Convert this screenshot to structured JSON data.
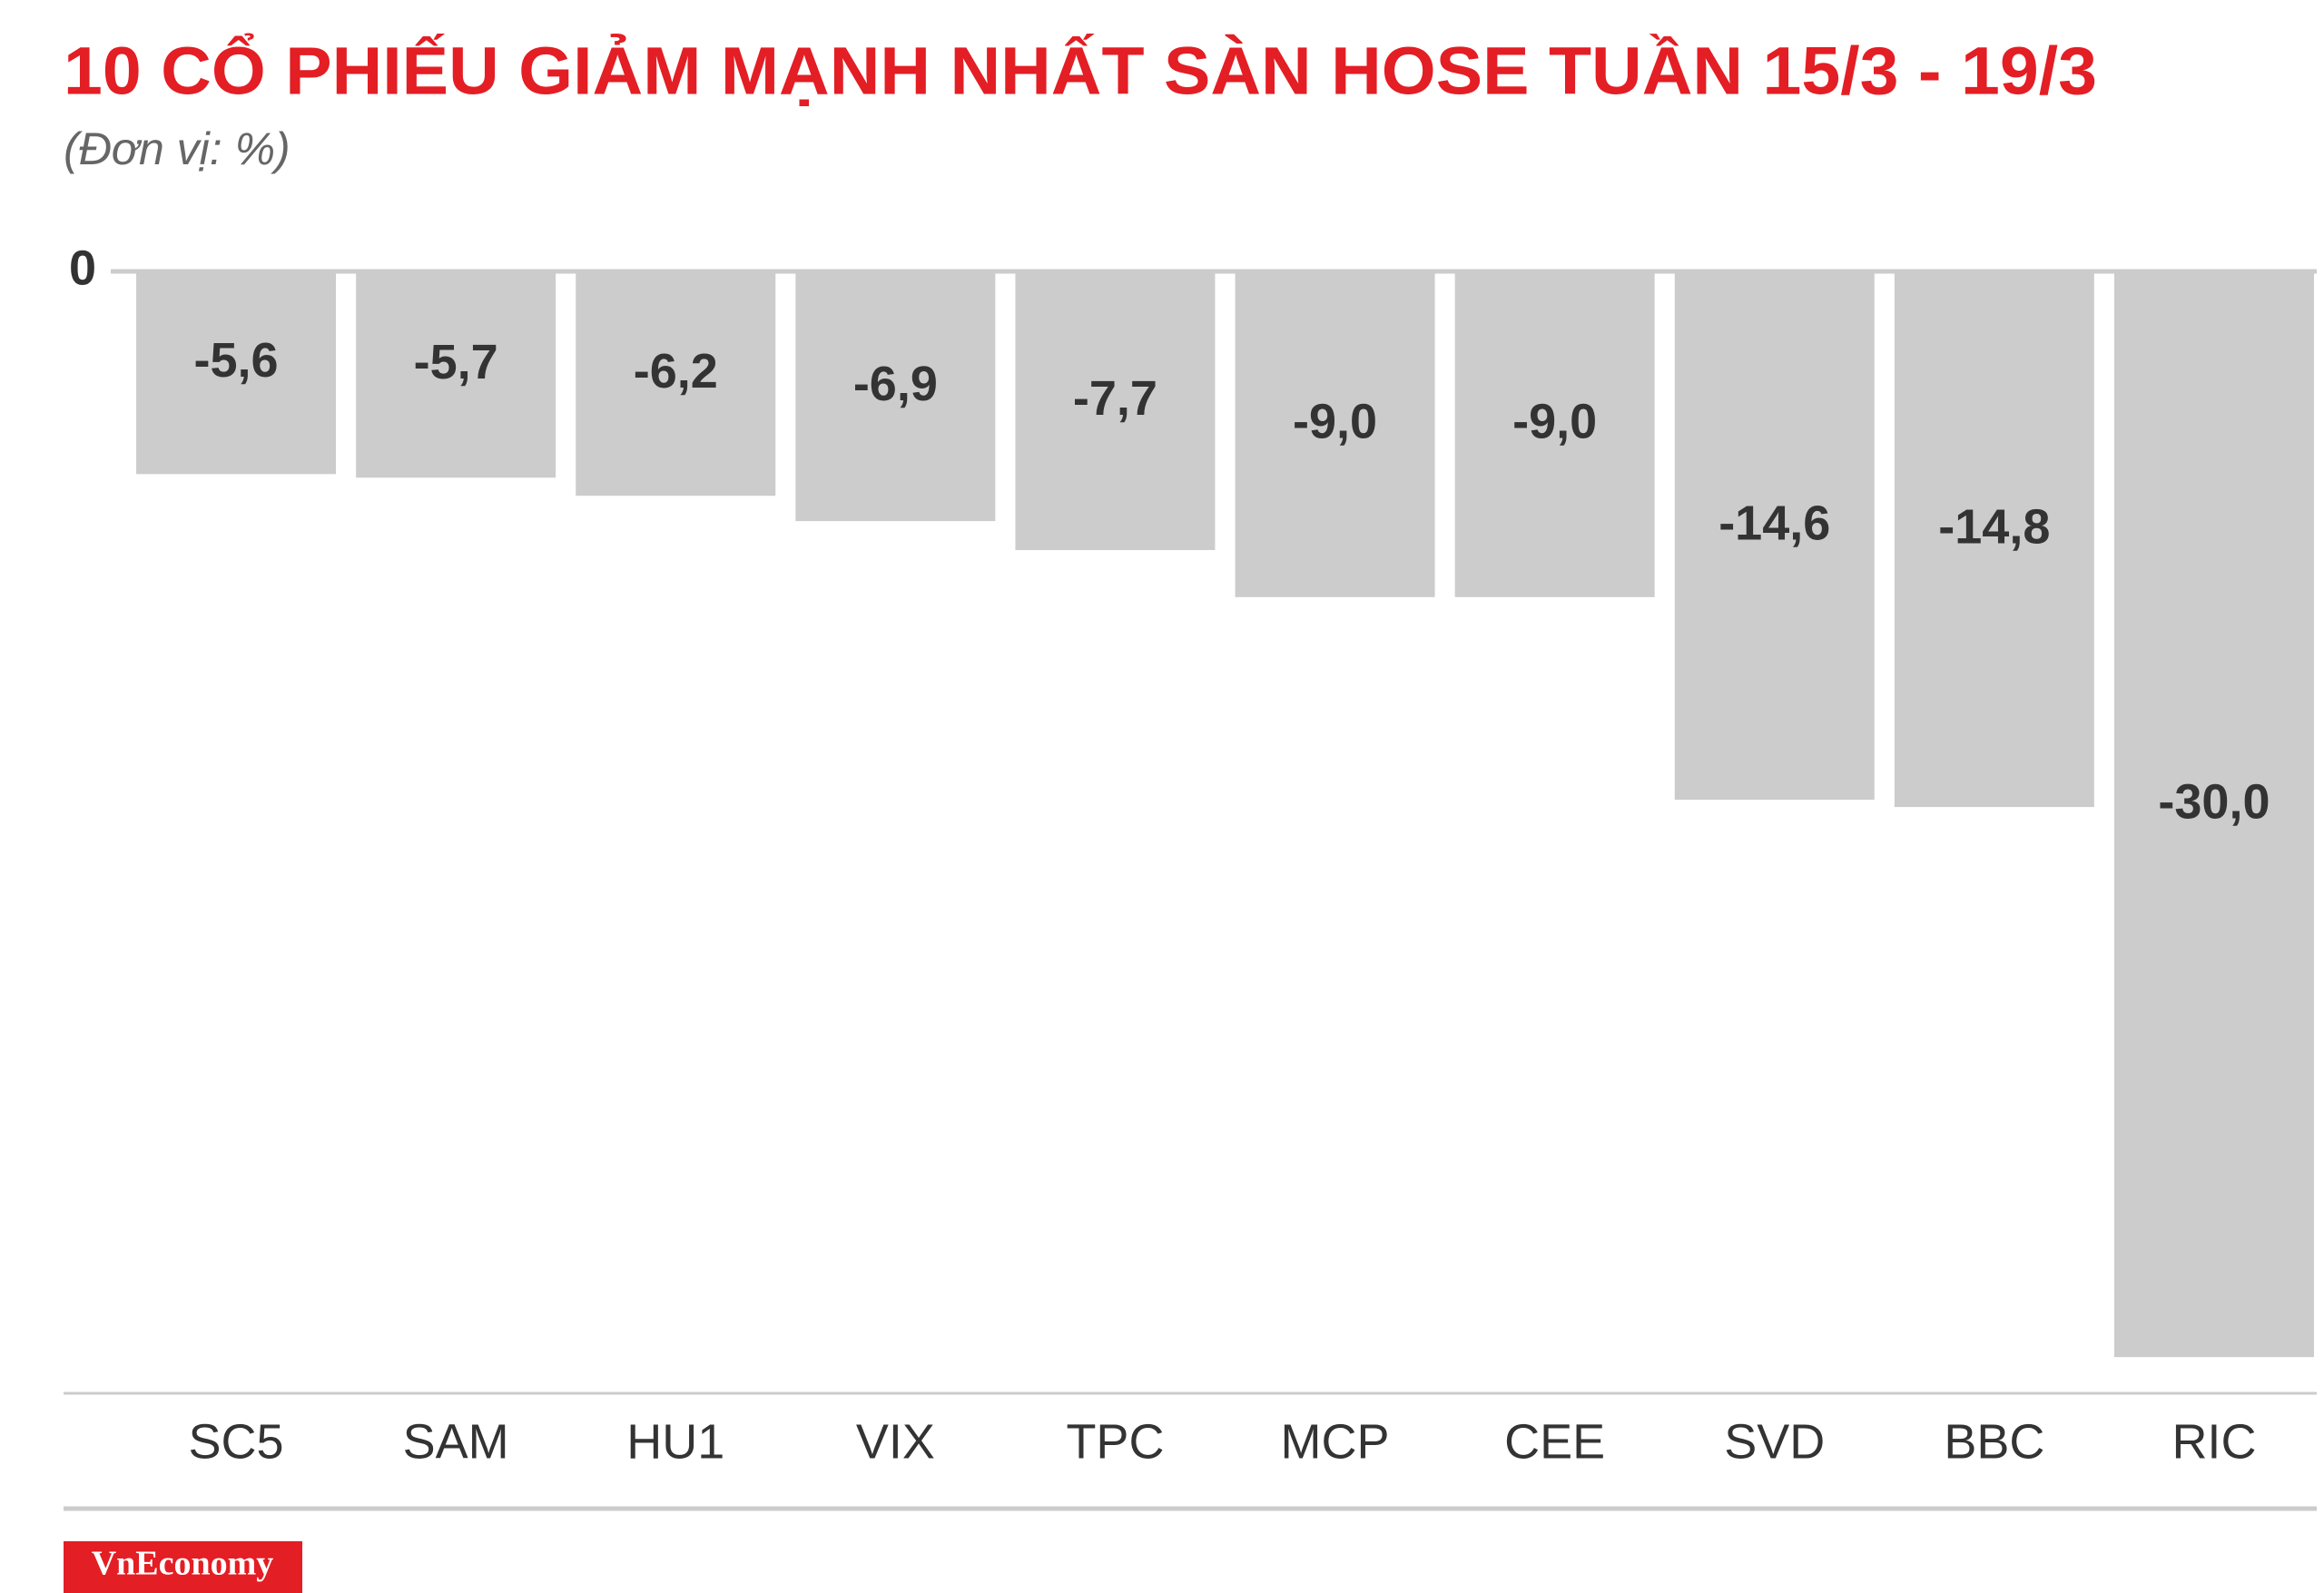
{
  "chart_data": {
    "type": "bar",
    "title": "10 CỔ PHIẾU GIẢM MẠNH NHẤT SÀN HOSE TUẦN 15/3 - 19/3",
    "subtitle": "(Đơn vị: %)",
    "categories": [
      "SC5",
      "SAM",
      "HU1",
      "VIX",
      "TPC",
      "MCP",
      "CEE",
      "SVD",
      "BBC",
      "RIC"
    ],
    "values": [
      -5.6,
      -5.7,
      -6.2,
      -6.9,
      -7.7,
      -9.0,
      -9.0,
      -14.6,
      -14.8,
      -30.0
    ],
    "value_labels": [
      "-5,6",
      "-5,7",
      "-6,2",
      "-6,9",
      "-7,7",
      "-9,0",
      "-9,0",
      "-14,6",
      "-14,8",
      "-30,0"
    ],
    "color": "#cccccc",
    "ylim": [
      -31,
      0
    ],
    "yticks": [
      0
    ],
    "source": "VnEconomy"
  }
}
